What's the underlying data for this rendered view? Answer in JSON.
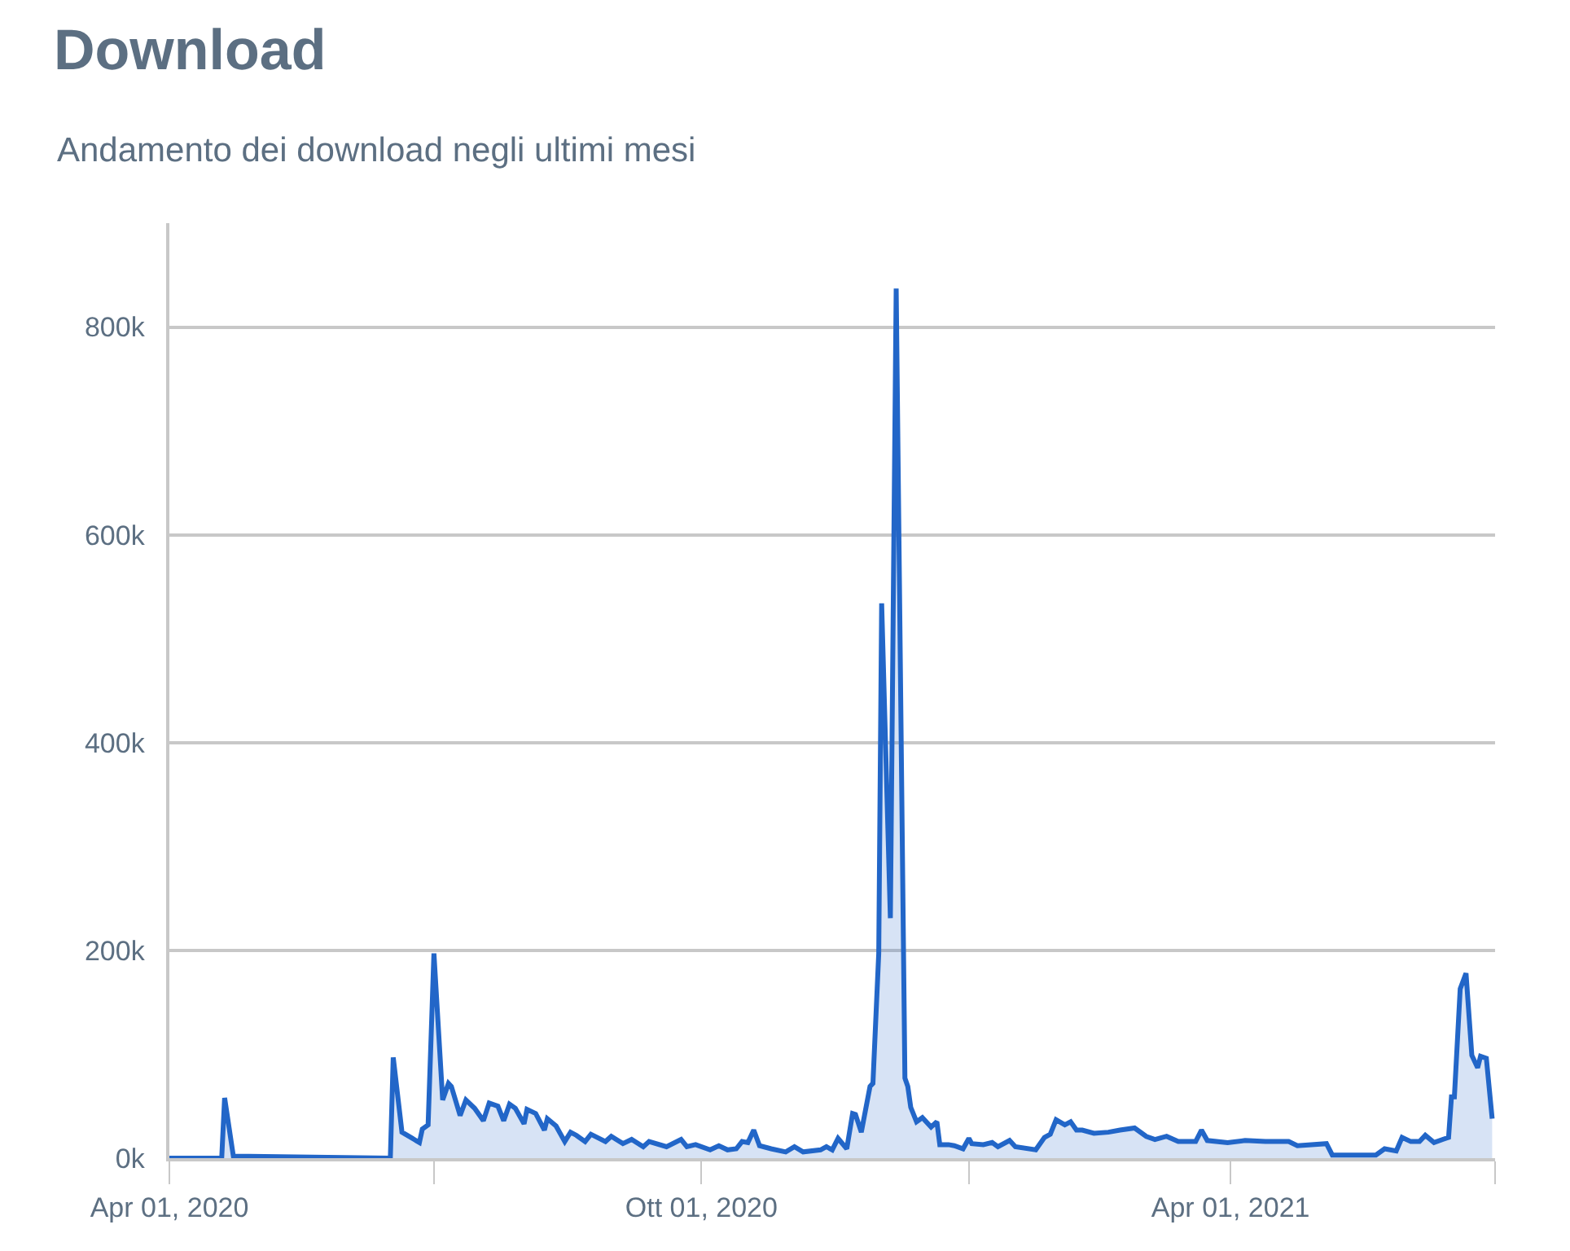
{
  "chart_data": {
    "type": "area",
    "title": "Download",
    "subtitle": "Andamento dei download negli ultimi mesi",
    "xlim": [
      "2020-04-01",
      "2021-07-01"
    ],
    "xticks": [
      {
        "value": "2020-04-01",
        "label": "Apr 01, 2020"
      },
      {
        "value": "2020-07-01",
        "label": null
      },
      {
        "value": "2020-10-01",
        "label": "Ott 01, 2020"
      },
      {
        "value": "2021-01-01",
        "label": null
      },
      {
        "value": "2021-04-01",
        "label": "Apr 01, 2021"
      },
      {
        "value": "2021-07-01",
        "label": null
      }
    ],
    "ylim": [
      0,
      900000
    ],
    "yticks": [
      {
        "value": 0,
        "label": "0k"
      },
      {
        "value": 200000,
        "label": "200k"
      },
      {
        "value": 400000,
        "label": "400k"
      },
      {
        "value": 600000,
        "label": "600k"
      },
      {
        "value": 800000,
        "label": "800k"
      }
    ],
    "grid": "y",
    "x": [
      "2020-04-01",
      "2020-04-19",
      "2020-04-20",
      "2020-04-23",
      "2020-06-16",
      "2020-06-17",
      "2020-06-20",
      "2020-06-26",
      "2020-06-27",
      "2020-06-29",
      "2020-07-01",
      "2020-07-04",
      "2020-07-06",
      "2020-07-07",
      "2020-07-10",
      "2020-07-12",
      "2020-07-15",
      "2020-07-18",
      "2020-07-20",
      "2020-07-23",
      "2020-07-25",
      "2020-07-27",
      "2020-07-29",
      "2020-08-01",
      "2020-08-02",
      "2020-08-05",
      "2020-08-08",
      "2020-08-09",
      "2020-08-12",
      "2020-08-15",
      "2020-08-17",
      "2020-08-19",
      "2020-08-22",
      "2020-08-24",
      "2020-08-29",
      "2020-08-31",
      "2020-09-04",
      "2020-09-07",
      "2020-09-11",
      "2020-09-13",
      "2020-09-19",
      "2020-09-24",
      "2020-09-26",
      "2020-09-29",
      "2020-10-04",
      "2020-10-07",
      "2020-10-10",
      "2020-10-13",
      "2020-10-15",
      "2020-10-17",
      "2020-10-19",
      "2020-10-21",
      "2020-10-25",
      "2020-10-30",
      "2020-11-02",
      "2020-11-05",
      "2020-11-11",
      "2020-11-13",
      "2020-11-15",
      "2020-11-17",
      "2020-11-20",
      "2020-11-22",
      "2020-11-23",
      "2020-11-25",
      "2020-11-28",
      "2020-11-29",
      "2020-12-01",
      "2020-12-02",
      "2020-12-05",
      "2020-12-07",
      "2020-12-10",
      "2020-12-11",
      "2020-12-12",
      "2020-12-14",
      "2020-12-16",
      "2020-12-19",
      "2020-12-21",
      "2020-12-22",
      "2020-12-25",
      "2020-12-27",
      "2020-12-30",
      "2021-01-01",
      "2021-01-02",
      "2021-01-06",
      "2021-01-09",
      "2021-01-11",
      "2021-01-15",
      "2021-01-17",
      "2021-01-24",
      "2021-01-27",
      "2021-01-29",
      "2021-01-31",
      "2021-02-03",
      "2021-02-05",
      "2021-02-07",
      "2021-02-09",
      "2021-02-13",
      "2021-02-18",
      "2021-02-22",
      "2021-02-27",
      "2021-03-03",
      "2021-03-06",
      "2021-03-10",
      "2021-03-14",
      "2021-03-20",
      "2021-03-22",
      "2021-03-24",
      "2021-03-31",
      "2021-04-06",
      "2021-04-13",
      "2021-04-21",
      "2021-04-24",
      "2021-05-04",
      "2021-05-06",
      "2021-05-13",
      "2021-05-21",
      "2021-05-24",
      "2021-05-28",
      "2021-05-30",
      "2021-06-02",
      "2021-06-05",
      "2021-06-07",
      "2021-06-10",
      "2021-06-13",
      "2021-06-15",
      "2021-06-16",
      "2021-06-17",
      "2021-06-19",
      "2021-06-21",
      "2021-06-23",
      "2021-06-25",
      "2021-06-26",
      "2021-06-28",
      "2021-06-30"
    ],
    "series": [
      {
        "color": "#2266c8",
        "values": [
          0,
          0,
          58000,
          2000,
          0,
          97000,
          25000,
          15000,
          28000,
          32000,
          197000,
          56000,
          72000,
          69000,
          41000,
          56000,
          48000,
          36000,
          53000,
          50000,
          36000,
          52000,
          48000,
          33000,
          47000,
          43000,
          27000,
          38000,
          31000,
          16000,
          25000,
          22000,
          16000,
          23000,
          16000,
          21000,
          14000,
          18000,
          11000,
          16000,
          11000,
          18000,
          11000,
          13000,
          8000,
          12000,
          8000,
          9000,
          16000,
          15000,
          27000,
          12000,
          9000,
          6000,
          11000,
          6000,
          8000,
          11000,
          8000,
          19000,
          9000,
          43000,
          42000,
          25000,
          69000,
          72000,
          197000,
          534000,
          231000,
          837000,
          77000,
          69000,
          49000,
          35000,
          39000,
          30000,
          35000,
          13000,
          13000,
          12000,
          9000,
          19000,
          14000,
          13000,
          15000,
          11000,
          17000,
          11000,
          8000,
          20000,
          23000,
          37000,
          32000,
          35000,
          27000,
          27000,
          24000,
          25000,
          27000,
          29000,
          21000,
          18000,
          21000,
          16000,
          16000,
          27000,
          17000,
          15000,
          17000,
          16000,
          16000,
          12000,
          14000,
          3000,
          3000,
          3000,
          9000,
          7000,
          20000,
          16000,
          16000,
          22000,
          15000,
          18000,
          20000,
          59000,
          59000,
          163000,
          178000,
          99000,
          87000,
          98000,
          96000,
          38000
        ]
      }
    ]
  }
}
